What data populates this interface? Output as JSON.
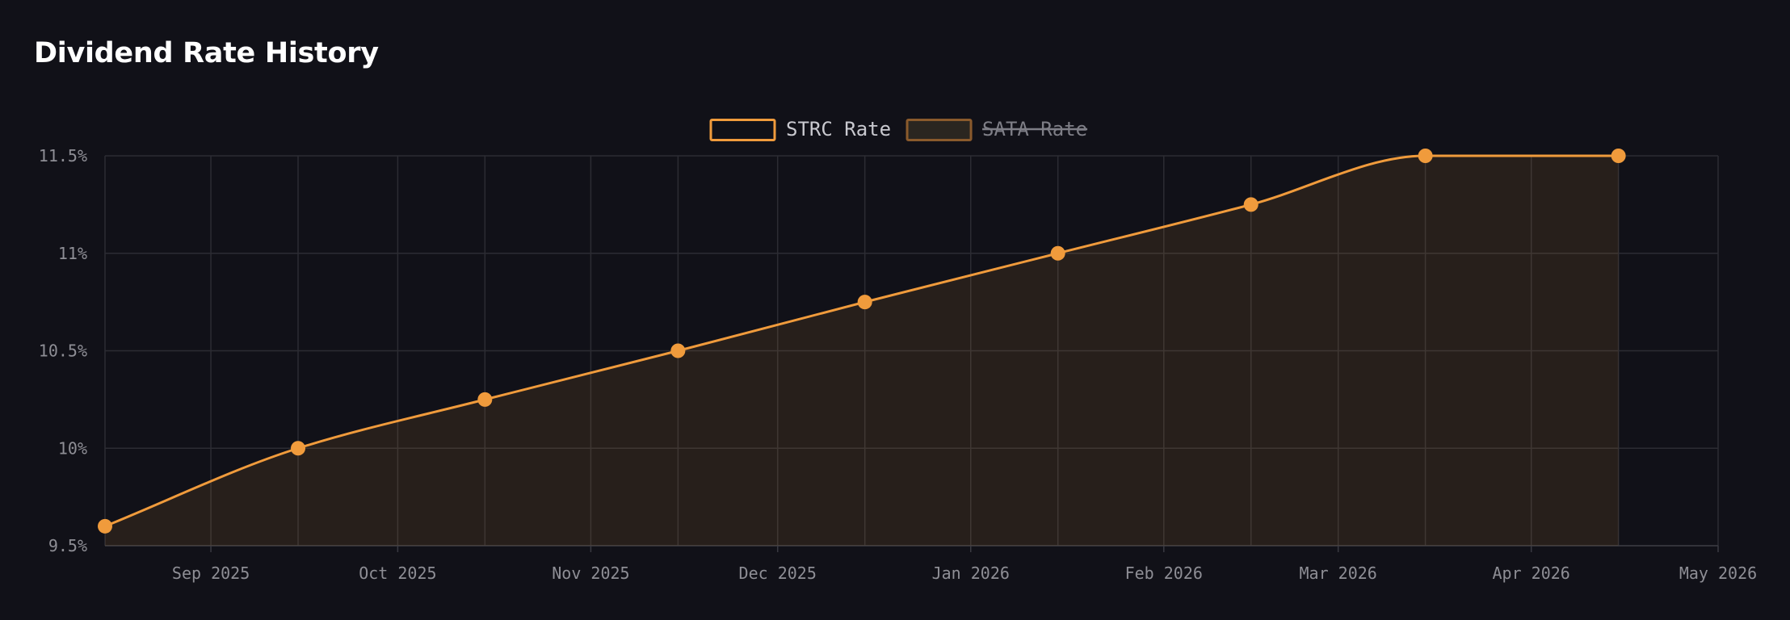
{
  "header": {
    "title": "Dividend Rate History"
  },
  "chart_data": {
    "type": "line",
    "title": "Dividend Rate History",
    "xlabel": "",
    "ylabel": "",
    "x_ticks": [
      "Sep 2025",
      "Oct 2025",
      "Nov 2025",
      "Dec 2025",
      "Jan 2026",
      "Feb 2026",
      "Mar 2026",
      "Apr 2026",
      "May 2026"
    ],
    "y_ticks": [
      "9.5%",
      "10%",
      "10.5%",
      "11%",
      "11.5%"
    ],
    "ylim": [
      9.5,
      11.5
    ],
    "xlim": [
      "2025-08-15",
      "2026-05-01"
    ],
    "grid": true,
    "legend_position": "top-center",
    "series": [
      {
        "name": "STRC Rate",
        "color": "#f09b3c",
        "visible": true,
        "filled_area": true,
        "points": [
          {
            "x": "2025-08-15",
            "y": 9.6
          },
          {
            "x": "2025-09-15",
            "y": 10.0
          },
          {
            "x": "2025-10-15",
            "y": 10.25
          },
          {
            "x": "2025-11-15",
            "y": 10.5
          },
          {
            "x": "2025-12-15",
            "y": 10.75
          },
          {
            "x": "2026-01-15",
            "y": 11.0
          },
          {
            "x": "2026-02-15",
            "y": 11.25
          },
          {
            "x": "2026-03-15",
            "y": 11.5
          },
          {
            "x": "2026-04-15",
            "y": 11.5
          }
        ]
      },
      {
        "name": "SATA Rate",
        "color": "#8a5a2c",
        "visible": false,
        "points": []
      }
    ]
  }
}
